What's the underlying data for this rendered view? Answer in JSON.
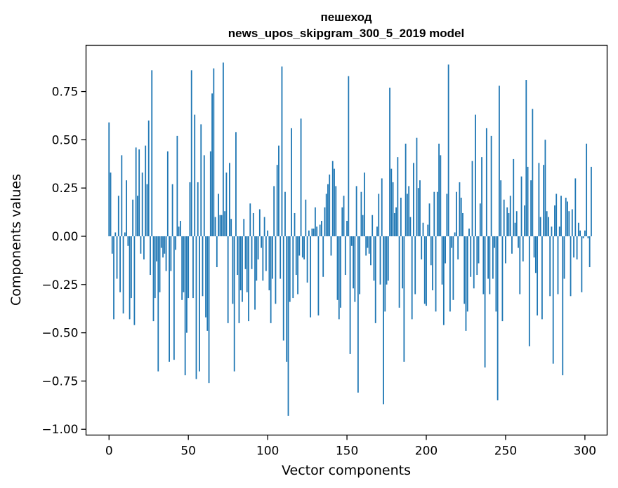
{
  "chart_data": {
    "type": "bar",
    "title_line1": "пешеход",
    "title_line2": "news_upos_skipgram_300_5_2019 model",
    "xlabel": "Vector components",
    "ylabel": "Components values",
    "xlim": [
      -14.5,
      314
    ],
    "ylim": [
      -1.03,
      0.99
    ],
    "x_ticks": [
      0,
      50,
      100,
      150,
      200,
      250,
      300
    ],
    "y_ticks": [
      -1.0,
      -0.75,
      -0.5,
      -0.25,
      0.0,
      0.25,
      0.5,
      0.75
    ],
    "x_tick_labels": [
      "0",
      "50",
      "100",
      "150",
      "200",
      "250",
      "300"
    ],
    "y_tick_labels": [
      "−1.00",
      "−0.75",
      "−0.50",
      "−0.25",
      "0.00",
      "0.25",
      "0.50",
      "0.75"
    ],
    "bar_color": "#1f77b4",
    "values": [
      0.59,
      0.33,
      -0.09,
      -0.43,
      0.02,
      -0.22,
      0.21,
      -0.29,
      0.42,
      -0.4,
      0.02,
      0.29,
      -0.05,
      -0.43,
      -0.32,
      0.19,
      -0.46,
      0.46,
      0.21,
      0.45,
      -0.09,
      0.33,
      -0.12,
      0.47,
      0.27,
      0.6,
      -0.2,
      0.86,
      -0.44,
      -0.32,
      -0.13,
      -0.7,
      -0.29,
      -0.06,
      -0.11,
      -0.09,
      -0.18,
      0.44,
      -0.65,
      -0.18,
      0.27,
      -0.64,
      -0.07,
      0.52,
      0.05,
      0.08,
      -0.33,
      -0.29,
      -0.72,
      -0.5,
      -0.32,
      0.28,
      0.86,
      -0.32,
      0.63,
      -0.74,
      0.28,
      -0.7,
      0.58,
      -0.31,
      0.42,
      -0.42,
      -0.49,
      -0.76,
      0.44,
      0.74,
      0.87,
      0.1,
      -0.16,
      0.22,
      0.11,
      0.11,
      0.9,
      0.13,
      0.33,
      -0.45,
      0.38,
      0.09,
      -0.35,
      -0.7,
      0.54,
      -0.2,
      -0.45,
      -0.28,
      -0.34,
      0.09,
      -0.17,
      -0.29,
      -0.44,
      0.17,
      -0.17,
      0.12,
      -0.38,
      -0.23,
      -0.12,
      0.14,
      -0.06,
      -0.23,
      0.1,
      -0.18,
      0.03,
      -0.28,
      -0.45,
      -0.22,
      0.26,
      -0.35,
      0.37,
      0.47,
      -0.22,
      0.88,
      -0.54,
      0.23,
      -0.65,
      -0.93,
      -0.34,
      0.56,
      -0.32,
      0.12,
      -0.2,
      -0.3,
      -0.1,
      0.61,
      -0.11,
      -0.12,
      0.19,
      -0.24,
      0.03,
      -0.42,
      0.04,
      0.04,
      0.15,
      0.05,
      -0.41,
      0.06,
      0.08,
      -0.21,
      0.15,
      0.22,
      0.27,
      0.32,
      -0.1,
      0.39,
      0.35,
      0.26,
      -0.33,
      -0.43,
      -0.37,
      0.15,
      0.21,
      -0.2,
      0.08,
      0.83,
      -0.61,
      -0.05,
      -0.27,
      -0.34,
      0.26,
      -0.81,
      -0.3,
      0.23,
      0.11,
      0.33,
      -0.1,
      -0.06,
      -0.09,
      -0.15,
      0.11,
      -0.23,
      -0.45,
      0.05,
      0.22,
      -0.25,
      0.3,
      -0.87,
      -0.39,
      -0.25,
      -0.23,
      0.77,
      0.35,
      0.28,
      0.12,
      0.15,
      0.41,
      -0.37,
      0.2,
      -0.27,
      -0.65,
      0.48,
      0.22,
      0.26,
      0.1,
      -0.43,
      0.38,
      -0.3,
      0.51,
      0.25,
      0.29,
      -0.12,
      0.07,
      -0.35,
      -0.36,
      0.06,
      0.17,
      -0.15,
      -0.28,
      0.23,
      -0.39,
      0.23,
      0.48,
      0.42,
      -0.25,
      -0.46,
      -0.14,
      0.22,
      0.89,
      -0.39,
      -0.06,
      -0.33,
      0.02,
      0.23,
      -0.12,
      0.28,
      0.2,
      0.12,
      -0.35,
      -0.49,
      -0.39,
      0.04,
      -0.21,
      0.39,
      -0.27,
      0.63,
      -0.2,
      -0.14,
      0.17,
      0.41,
      -0.3,
      -0.68,
      0.56,
      -0.22,
      -0.3,
      0.52,
      -0.22,
      -0.06,
      -0.39,
      -0.85,
      0.78,
      0.29,
      -0.44,
      0.19,
      -0.14,
      0.15,
      0.12,
      0.21,
      -0.09,
      0.4,
      0.07,
      0.13,
      -0.06,
      -0.3,
      0.31,
      -0.13,
      0.16,
      0.81,
      0.36,
      -0.57,
      0.29,
      0.66,
      -0.11,
      -0.19,
      -0.41,
      0.38,
      0.1,
      -0.43,
      0.37,
      0.5,
      0.13,
      0.1,
      -0.31,
      0.05,
      -0.66,
      0.16,
      0.22,
      -0.3,
      0.05,
      0.21,
      -0.72,
      -0.22,
      0.2,
      0.18,
      0.13,
      -0.31,
      0.14,
      -0.11,
      0.3,
      -0.12,
      0.07,
      0.03,
      -0.29,
      -0.01,
      0.03,
      0.48,
      -0.01,
      -0.16,
      0.36
    ]
  }
}
